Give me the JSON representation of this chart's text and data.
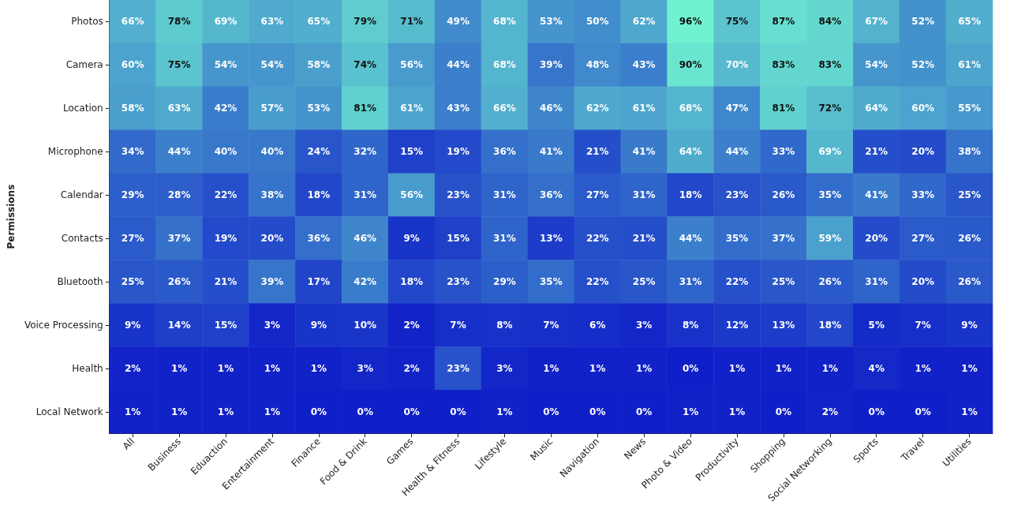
{
  "chart_data": {
    "type": "heatmap",
    "ylabel": "Permissions",
    "categories": [
      "All",
      "Business",
      "Eduaction",
      "Entertainment",
      "Finance",
      "Food & Drink",
      "Games",
      "Health & Fitness",
      "Lifestyle",
      "Music",
      "Navigation",
      "News",
      "Photo & Video",
      "Productivity",
      "Shopping",
      "Social Networking",
      "Sports",
      "Travel",
      "Utilities"
    ],
    "y_categories": [
      "Photos",
      "Camera",
      "Location",
      "Microphone",
      "Calendar",
      "Contacts",
      "Bluetooth",
      "Voice Processing",
      "Health",
      "Local Network"
    ],
    "cells": [
      [
        66,
        78,
        69,
        63,
        65,
        79,
        71,
        49,
        68,
        53,
        50,
        62,
        96,
        75,
        87,
        84,
        67,
        52,
        65
      ],
      [
        60,
        75,
        54,
        54,
        58,
        74,
        56,
        44,
        68,
        39,
        48,
        43,
        90,
        70,
        83,
        83,
        54,
        52,
        61
      ],
      [
        58,
        63,
        42,
        57,
        53,
        81,
        61,
        43,
        66,
        46,
        62,
        61,
        68,
        47,
        81,
        72,
        64,
        60,
        55
      ],
      [
        34,
        44,
        40,
        40,
        24,
        32,
        15,
        19,
        36,
        41,
        21,
        41,
        64,
        44,
        33,
        69,
        21,
        20,
        38
      ],
      [
        29,
        28,
        22,
        38,
        18,
        31,
        56,
        23,
        31,
        36,
        27,
        31,
        18,
        23,
        26,
        35,
        41,
        33,
        25
      ],
      [
        27,
        37,
        19,
        20,
        36,
        46,
        9,
        15,
        31,
        13,
        22,
        21,
        44,
        35,
        37,
        59,
        20,
        27,
        26
      ],
      [
        25,
        26,
        21,
        39,
        17,
        42,
        18,
        23,
        29,
        35,
        22,
        25,
        31,
        22,
        25,
        26,
        31,
        20,
        26
      ],
      [
        9,
        14,
        15,
        3,
        9,
        10,
        2,
        7,
        8,
        7,
        6,
        3,
        8,
        12,
        13,
        18,
        5,
        7,
        9
      ],
      [
        2,
        1,
        1,
        1,
        1,
        3,
        2,
        23,
        3,
        1,
        1,
        1,
        0,
        1,
        1,
        1,
        4,
        1,
        1
      ],
      [
        1,
        1,
        1,
        1,
        0,
        0,
        0,
        0,
        1,
        0,
        0,
        0,
        1,
        1,
        0,
        2,
        0,
        0,
        1
      ]
    ],
    "cell_labels": [
      [
        "66%",
        "78%",
        "69%",
        "63%",
        "65%",
        "79%",
        "71%",
        "49%",
        "68%",
        "53%",
        "50%",
        "62%",
        "96%",
        "75%",
        "87%",
        "84%",
        "67%",
        "52%",
        "65%"
      ],
      [
        "60%",
        "75%",
        "54%",
        "54%",
        "58%",
        "74%",
        "56%",
        "44%",
        "68%",
        "39%",
        "48%",
        "43%",
        "90%",
        "70%",
        "83%",
        "83%",
        "54%",
        "52%",
        "61%"
      ],
      [
        "58%",
        "63%",
        "42%",
        "57%",
        "53%",
        "81%",
        "61%",
        "43%",
        "66%",
        "46%",
        "62%",
        "61%",
        "68%",
        "47%",
        "81%",
        "72%",
        "64%",
        "60%",
        "55%"
      ],
      [
        "34%",
        "44%",
        "40%",
        "40%",
        "24%",
        "32%",
        "15%",
        "19%",
        "36%",
        "41%",
        "21%",
        "41%",
        "64%",
        "44%",
        "33%",
        "69%",
        "21%",
        "20%",
        "38%"
      ],
      [
        "29%",
        "28%",
        "22%",
        "38%",
        "18%",
        "31%",
        "56%",
        "23%",
        "31%",
        "36%",
        "27%",
        "31%",
        "18%",
        "23%",
        "26%",
        "35%",
        "41%",
        "33%",
        "25%"
      ],
      [
        "27%",
        "37%",
        "19%",
        "20%",
        "36%",
        "46%",
        "9%",
        "15%",
        "31%",
        "13%",
        "22%",
        "21%",
        "44%",
        "35%",
        "37%",
        "59%",
        "20%",
        "27%",
        "26%"
      ],
      [
        "25%",
        "26%",
        "21%",
        "39%",
        "17%",
        "42%",
        "18%",
        "23%",
        "29%",
        "35%",
        "22%",
        "25%",
        "31%",
        "22%",
        "25%",
        "26%",
        "31%",
        "20%",
        "26%"
      ],
      [
        "9%",
        "14%",
        "15%",
        "3%",
        "9%",
        "10%",
        "2%",
        "7%",
        "8%",
        "7%",
        "6%",
        "3%",
        "8%",
        "12%",
        "13%",
        "18%",
        "5%",
        "7%",
        "9%"
      ],
      [
        "2%",
        "1%",
        "1%",
        "1%",
        "1%",
        "3%",
        "2%",
        "23%",
        "3%",
        "1%",
        "1%",
        "1%",
        "0%",
        "1%",
        "1%",
        "1%",
        "4%",
        "1%",
        "1%"
      ],
      [
        "1%",
        "1%",
        "1%",
        "1%",
        "0%",
        "0%",
        "0%",
        "0%",
        "1%",
        "0%",
        "0%",
        "0%",
        "1%",
        "1%",
        "0%",
        "2%",
        "0%",
        "0%",
        "1%"
      ]
    ]
  }
}
